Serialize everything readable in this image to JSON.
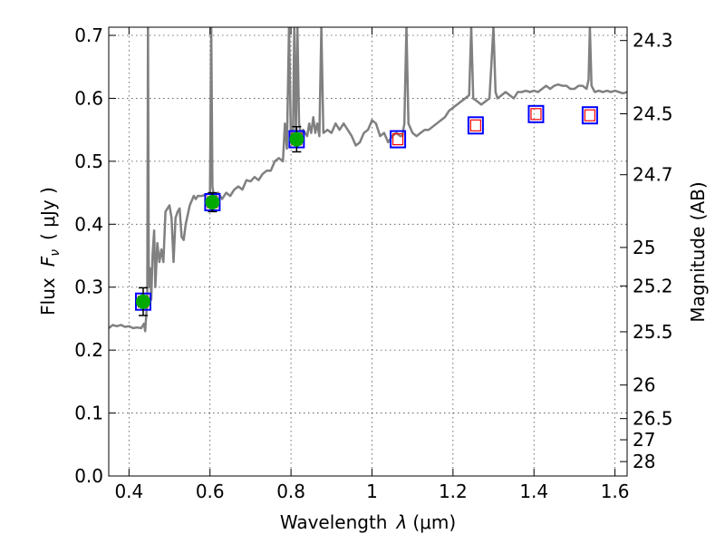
{
  "chart_data": {
    "type": "line",
    "xlabel_text": "Wavelength",
    "xlabel_symbol": "λ",
    "xlabel_unit": "(μm)",
    "ylabel_text": "Flux",
    "ylabel_symbol": "F",
    "ylabel_sub": "ν",
    "ylabel_unit": "( μJy )",
    "y2label": "Magnitude (AB)",
    "xlim": [
      0.35,
      1.63
    ],
    "ylim": [
      0.0,
      0.713
    ],
    "xticks": [
      0.4,
      0.6,
      0.8,
      1.0,
      1.2,
      1.4,
      1.6
    ],
    "xtick_labels": [
      "0.4",
      "0.6",
      "0.8",
      "1",
      "1.2",
      "1.4",
      "1.6"
    ],
    "yticks": [
      0.0,
      0.1,
      0.2,
      0.3,
      0.4,
      0.5,
      0.6,
      0.7
    ],
    "ytick_labels": [
      "0.0",
      "0.1",
      "0.2",
      "0.3",
      "0.4",
      "0.5",
      "0.6",
      "0.7"
    ],
    "mag_ticks": [
      {
        "mag": 24.3,
        "label": "24.3"
      },
      {
        "mag": 24.5,
        "label": "24.5"
      },
      {
        "mag": 24.7,
        "label": "24.7"
      },
      {
        "mag": 25.0,
        "label": "25"
      },
      {
        "mag": 25.2,
        "label": "25.2"
      },
      {
        "mag": 25.5,
        "label": "25.5"
      },
      {
        "mag": 26.0,
        "label": "26"
      },
      {
        "mag": 26.5,
        "label": "26.5"
      },
      {
        "mag": 27.0,
        "label": "27"
      },
      {
        "mag": 28.0,
        "label": "28"
      }
    ],
    "grid": true,
    "series": [
      {
        "name": "model-spectrum",
        "color": "#808080",
        "points": [
          [
            0.35,
            0.235
          ],
          [
            0.36,
            0.24
          ],
          [
            0.37,
            0.238
          ],
          [
            0.38,
            0.24
          ],
          [
            0.39,
            0.237
          ],
          [
            0.4,
            0.238
          ],
          [
            0.41,
            0.235
          ],
          [
            0.42,
            0.236
          ],
          [
            0.43,
            0.235
          ],
          [
            0.437,
            0.242
          ],
          [
            0.44,
            0.23
          ],
          [
            0.445,
            0.28
          ],
          [
            0.447,
            0.713
          ],
          [
            0.449,
            0.3
          ],
          [
            0.452,
            0.33
          ],
          [
            0.455,
            0.28
          ],
          [
            0.458,
            0.35
          ],
          [
            0.462,
            0.39
          ],
          [
            0.465,
            0.3
          ],
          [
            0.47,
            0.37
          ],
          [
            0.475,
            0.34
          ],
          [
            0.48,
            0.36
          ],
          [
            0.485,
            0.34
          ],
          [
            0.49,
            0.42
          ],
          [
            0.495,
            0.425
          ],
          [
            0.5,
            0.43
          ],
          [
            0.505,
            0.41
          ],
          [
            0.51,
            0.34
          ],
          [
            0.515,
            0.41
          ],
          [
            0.52,
            0.42
          ],
          [
            0.525,
            0.425
          ],
          [
            0.53,
            0.38
          ],
          [
            0.535,
            0.375
          ],
          [
            0.54,
            0.4
          ],
          [
            0.55,
            0.43
          ],
          [
            0.56,
            0.445
          ],
          [
            0.565,
            0.44
          ],
          [
            0.57,
            0.445
          ],
          [
            0.58,
            0.445
          ],
          [
            0.59,
            0.447
          ],
          [
            0.6,
            0.45
          ],
          [
            0.603,
            0.713
          ],
          [
            0.606,
            0.46
          ],
          [
            0.61,
            0.442
          ],
          [
            0.62,
            0.45
          ],
          [
            0.63,
            0.44
          ],
          [
            0.64,
            0.45
          ],
          [
            0.65,
            0.445
          ],
          [
            0.66,
            0.455
          ],
          [
            0.67,
            0.46
          ],
          [
            0.68,
            0.455
          ],
          [
            0.69,
            0.47
          ],
          [
            0.7,
            0.468
          ],
          [
            0.71,
            0.475
          ],
          [
            0.72,
            0.47
          ],
          [
            0.73,
            0.48
          ],
          [
            0.74,
            0.485
          ],
          [
            0.75,
            0.485
          ],
          [
            0.76,
            0.5
          ],
          [
            0.77,
            0.505
          ],
          [
            0.78,
            0.5
          ],
          [
            0.785,
            0.56
          ],
          [
            0.79,
            0.52
          ],
          [
            0.795,
            0.713
          ],
          [
            0.8,
            0.53
          ],
          [
            0.805,
            0.54
          ],
          [
            0.808,
            0.713
          ],
          [
            0.812,
            0.545
          ],
          [
            0.816,
            0.713
          ],
          [
            0.82,
            0.56
          ],
          [
            0.825,
            0.54
          ],
          [
            0.83,
            0.55
          ],
          [
            0.84,
            0.54
          ],
          [
            0.845,
            0.56
          ],
          [
            0.85,
            0.545
          ],
          [
            0.855,
            0.57
          ],
          [
            0.86,
            0.545
          ],
          [
            0.865,
            0.56
          ],
          [
            0.87,
            0.54
          ],
          [
            0.875,
            0.713
          ],
          [
            0.88,
            0.545
          ],
          [
            0.89,
            0.55
          ],
          [
            0.9,
            0.545
          ],
          [
            0.91,
            0.56
          ],
          [
            0.92,
            0.55
          ],
          [
            0.93,
            0.56
          ],
          [
            0.94,
            0.55
          ],
          [
            0.95,
            0.54
          ],
          [
            0.96,
            0.525
          ],
          [
            0.97,
            0.53
          ],
          [
            0.98,
            0.545
          ],
          [
            0.99,
            0.55
          ],
          [
            1.0,
            0.565
          ],
          [
            1.01,
            0.56
          ],
          [
            1.02,
            0.54
          ],
          [
            1.03,
            0.545
          ],
          [
            1.04,
            0.53
          ],
          [
            1.05,
            0.54
          ],
          [
            1.06,
            0.545
          ],
          [
            1.07,
            0.54
          ],
          [
            1.075,
            0.54
          ],
          [
            1.08,
            0.56
          ],
          [
            1.085,
            0.713
          ],
          [
            1.09,
            0.56
          ],
          [
            1.1,
            0.545
          ],
          [
            1.11,
            0.54
          ],
          [
            1.12,
            0.545
          ],
          [
            1.13,
            0.55
          ],
          [
            1.14,
            0.55
          ],
          [
            1.15,
            0.555
          ],
          [
            1.16,
            0.56
          ],
          [
            1.17,
            0.565
          ],
          [
            1.18,
            0.57
          ],
          [
            1.19,
            0.58
          ],
          [
            1.2,
            0.585
          ],
          [
            1.21,
            0.59
          ],
          [
            1.22,
            0.595
          ],
          [
            1.23,
            0.6
          ],
          [
            1.24,
            0.605
          ],
          [
            1.245,
            0.713
          ],
          [
            1.25,
            0.6
          ],
          [
            1.26,
            0.595
          ],
          [
            1.27,
            0.59
          ],
          [
            1.28,
            0.595
          ],
          [
            1.29,
            0.6
          ],
          [
            1.3,
            0.713
          ],
          [
            1.305,
            0.61
          ],
          [
            1.31,
            0.6
          ],
          [
            1.32,
            0.605
          ],
          [
            1.33,
            0.61
          ],
          [
            1.34,
            0.605
          ],
          [
            1.35,
            0.6
          ],
          [
            1.36,
            0.61
          ],
          [
            1.37,
            0.61
          ],
          [
            1.38,
            0.612
          ],
          [
            1.39,
            0.61
          ],
          [
            1.4,
            0.612
          ],
          [
            1.41,
            0.61
          ],
          [
            1.42,
            0.615
          ],
          [
            1.43,
            0.62
          ],
          [
            1.44,
            0.615
          ],
          [
            1.45,
            0.62
          ],
          [
            1.46,
            0.622
          ],
          [
            1.47,
            0.62
          ],
          [
            1.48,
            0.62
          ],
          [
            1.49,
            0.615
          ],
          [
            1.5,
            0.615
          ],
          [
            1.51,
            0.62
          ],
          [
            1.52,
            0.62
          ],
          [
            1.53,
            0.615
          ],
          [
            1.535,
            0.63
          ],
          [
            1.538,
            0.713
          ],
          [
            1.542,
            0.62
          ],
          [
            1.55,
            0.61
          ],
          [
            1.56,
            0.612
          ],
          [
            1.57,
            0.61
          ],
          [
            1.58,
            0.612
          ],
          [
            1.59,
            0.61
          ],
          [
            1.6,
            0.612
          ],
          [
            1.61,
            0.61
          ],
          [
            1.62,
            0.608
          ],
          [
            1.63,
            0.61
          ]
        ]
      }
    ],
    "model_points": {
      "name": "model-photometry",
      "marker": "open-square",
      "outer_color": "#0000ff",
      "inner_color": "#ff0000",
      "points": [
        {
          "x": 0.435,
          "y": 0.277
        },
        {
          "x": 0.606,
          "y": 0.435
        },
        {
          "x": 0.814,
          "y": 0.535
        },
        {
          "x": 1.064,
          "y": 0.535
        },
        {
          "x": 1.256,
          "y": 0.557
        },
        {
          "x": 1.405,
          "y": 0.575
        },
        {
          "x": 1.538,
          "y": 0.573
        }
      ]
    },
    "observed_points": {
      "name": "observed-photometry",
      "marker": "filled-circle",
      "color": "#00aa00",
      "points": [
        {
          "x": 0.435,
          "y": 0.277,
          "err": 0.022
        },
        {
          "x": 0.606,
          "y": 0.435,
          "err": 0.015
        },
        {
          "x": 0.814,
          "y": 0.535,
          "err": 0.02
        }
      ]
    }
  }
}
